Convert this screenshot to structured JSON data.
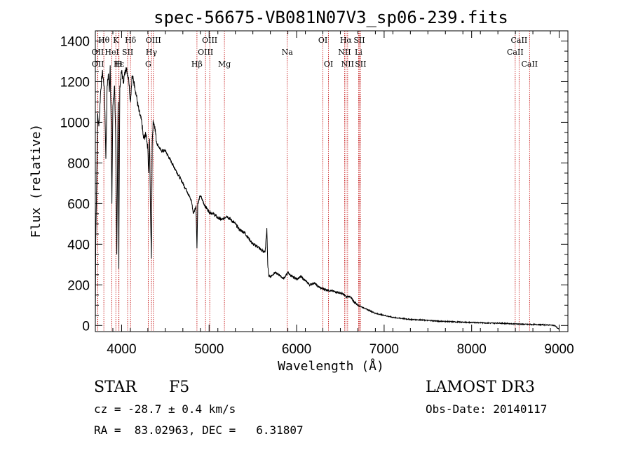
{
  "chart_data": {
    "type": "line",
    "title": "spec-56675-VB081N07V3_sp06-239.fits",
    "xlabel": "Wavelength (Å)",
    "ylabel": "Flux (relative)",
    "xlim": [
      3700,
      9100
    ],
    "ylim": [
      -30,
      1450
    ],
    "xticks": [
      4000,
      5000,
      6000,
      7000,
      8000,
      9000
    ],
    "yticks": [
      0,
      200,
      400,
      600,
      800,
      1000,
      1200,
      1400
    ],
    "grid": false,
    "series": [
      {
        "name": "flux",
        "x": [
          3700,
          3705,
          3715,
          3725,
          3740,
          3760,
          3780,
          3800,
          3810,
          3820,
          3835,
          3850,
          3860,
          3870,
          3880,
          3889,
          3900,
          3920,
          3933,
          3945,
          3960,
          3968,
          3980,
          4000,
          4020,
          4050,
          4080,
          4101,
          4120,
          4150,
          4180,
          4200,
          4230,
          4250,
          4280,
          4300,
          4310,
          4320,
          4330,
          4340,
          4350,
          4360,
          4380,
          4400,
          4450,
          4500,
          4550,
          4600,
          4650,
          4700,
          4750,
          4800,
          4820,
          4850,
          4861,
          4870,
          4900,
          4950,
          5000,
          5050,
          5100,
          5150,
          5200,
          5250,
          5300,
          5350,
          5400,
          5450,
          5500,
          5550,
          5600,
          5640,
          5660,
          5670,
          5680,
          5700,
          5750,
          5800,
          5850,
          5900,
          5950,
          6000,
          6050,
          6100,
          6150,
          6200,
          6250,
          6300,
          6350,
          6400,
          6450,
          6500,
          6550,
          6563,
          6600,
          6650,
          6700,
          6750,
          6800,
          6850,
          6900,
          6950,
          7000,
          7050,
          7100,
          7200,
          7300,
          7400,
          7500,
          7600,
          7700,
          7800,
          7900,
          8000,
          8100,
          8200,
          8300,
          8400,
          8500,
          8600,
          8700,
          8800,
          8850,
          8900,
          8950,
          9000
        ],
        "values": [
          0,
          420,
          700,
          1040,
          980,
          1150,
          1250,
          1180,
          1050,
          820,
          1180,
          1240,
          1150,
          1280,
          1000,
          600,
          1080,
          1180,
          900,
          350,
          1100,
          280,
          1180,
          1250,
          1200,
          1270,
          1220,
          1100,
          1230,
          1180,
          1100,
          1050,
          1000,
          920,
          940,
          870,
          750,
          920,
          560,
          330,
          880,
          1010,
          980,
          900,
          860,
          860,
          820,
          780,
          740,
          700,
          660,
          610,
          550,
          590,
          380,
          600,
          640,
          590,
          560,
          550,
          530,
          520,
          540,
          520,
          500,
          470,
          460,
          430,
          400,
          390,
          370,
          360,
          480,
          300,
          250,
          240,
          260,
          250,
          230,
          260,
          240,
          230,
          240,
          220,
          200,
          210,
          190,
          180,
          175,
          170,
          165,
          160,
          150,
          140,
          145,
          120,
          100,
          90,
          80,
          70,
          60,
          55,
          50,
          45,
          40,
          35,
          30,
          28,
          25,
          22,
          20,
          18,
          16,
          15,
          14,
          12,
          12,
          10,
          8,
          6,
          5,
          4,
          3,
          2,
          0,
          -20
        ]
      }
    ],
    "lines": [
      {
        "name": "Hθ",
        "x": 3797,
        "row": 1
      },
      {
        "name": "OII",
        "x": 3727,
        "row": 2
      },
      {
        "name": "OII",
        "x": 3729,
        "row": 3
      },
      {
        "name": "HeI",
        "x": 3889,
        "row": 2
      },
      {
        "name": "K",
        "x": 3934,
        "row": 1
      },
      {
        "name": "H",
        "x": 3968,
        "row": 3
      },
      {
        "name": "Hε",
        "x": 3970,
        "row": 3
      },
      {
        "name": "SII",
        "x": 4069,
        "row": 2
      },
      {
        "name": "Hδ",
        "x": 4102,
        "row": 1
      },
      {
        "name": "OIII",
        "x": 4363,
        "row": 1
      },
      {
        "name": "Hγ",
        "x": 4341,
        "row": 2
      },
      {
        "name": "G",
        "x": 4304,
        "row": 3
      },
      {
        "name": "Hβ",
        "x": 4861,
        "row": 3
      },
      {
        "name": "OIII",
        "x": 4959,
        "row": 2
      },
      {
        "name": "OIII",
        "x": 5007,
        "row": 1
      },
      {
        "name": "Mg",
        "x": 5175,
        "row": 3
      },
      {
        "name": "Na",
        "x": 5893,
        "row": 2
      },
      {
        "name": "OI",
        "x": 6300,
        "row": 1
      },
      {
        "name": "OI",
        "x": 6364,
        "row": 3
      },
      {
        "name": "NII",
        "x": 6548,
        "row": 2
      },
      {
        "name": "Hα",
        "x": 6563,
        "row": 1
      },
      {
        "name": "NII",
        "x": 6583,
        "row": 3
      },
      {
        "name": "Li",
        "x": 6708,
        "row": 2
      },
      {
        "name": "SII",
        "x": 6716,
        "row": 1
      },
      {
        "name": "SII",
        "x": 6731,
        "row": 3
      },
      {
        "name": "CaII",
        "x": 8498,
        "row": 2
      },
      {
        "name": "CaII",
        "x": 8542,
        "row": 1
      },
      {
        "name": "CaII",
        "x": 8662,
        "row": 3
      }
    ]
  },
  "info": {
    "class_label": "STAR",
    "subclass": "F5",
    "survey": "LAMOST DR3",
    "redshift_line": "cz = -28.7 ± 0.4 km/s",
    "obs_date": "Obs-Date: 20140117",
    "coords": "RA =  83.02963, DEC =   6.31807"
  },
  "colors": {
    "axis": "#000000",
    "line": "#000000",
    "marker": "#c00000"
  }
}
